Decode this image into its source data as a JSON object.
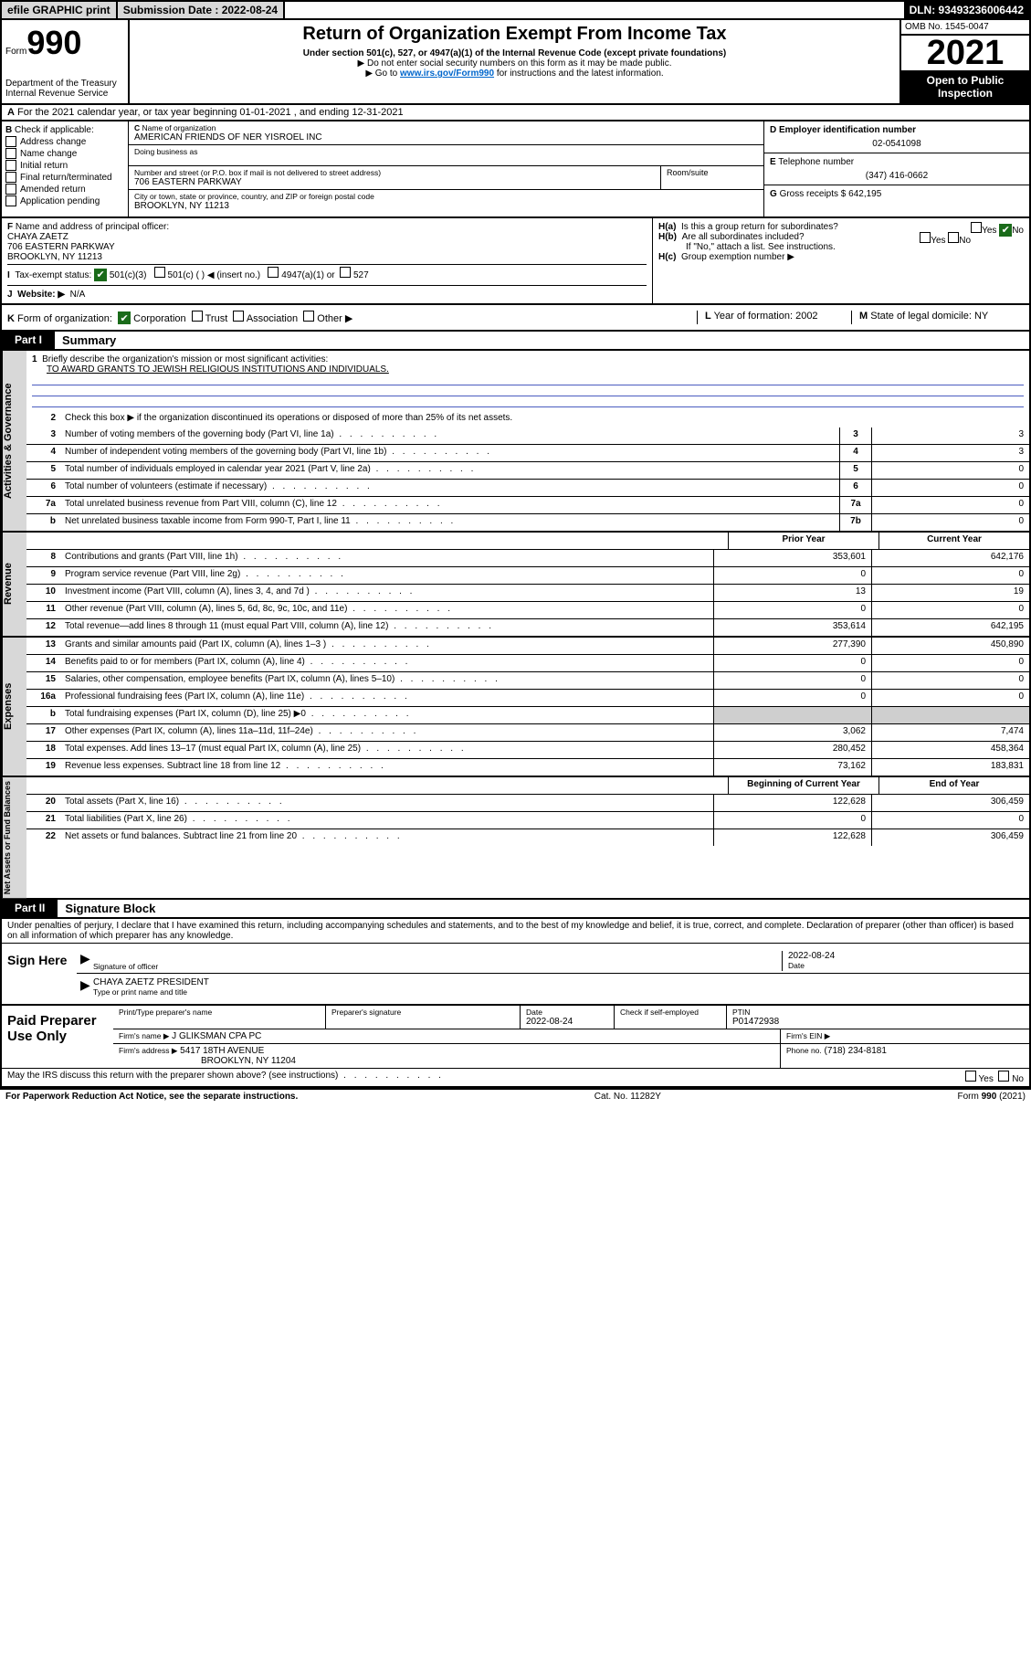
{
  "top": {
    "efile": "efile GRAPHIC print",
    "sub_label": "Submission Date : 2022-08-24",
    "dln": "DLN: 93493236006442"
  },
  "hdr": {
    "form_word": "Form",
    "form_num": "990",
    "title": "Return of Organization Exempt From Income Tax",
    "sub1": "Under section 501(c), 527, or 4947(a)(1) of the Internal Revenue Code (except private foundations)",
    "sub2": "Do not enter social security numbers on this form as it may be made public.",
    "sub3_pre": "Go to ",
    "sub3_link": "www.irs.gov/Form990",
    "sub3_post": " for instructions and the latest information.",
    "dept": "Department of the Treasury",
    "irs": "Internal Revenue Service",
    "omb": "OMB No. 1545-0047",
    "year": "2021",
    "open": "Open to Public Inspection"
  },
  "A": {
    "text": "For the 2021 calendar year, or tax year beginning 01-01-2021   , and ending 12-31-2021"
  },
  "B": {
    "label": "Check if applicable:",
    "items": [
      "Address change",
      "Name change",
      "Initial return",
      "Final return/terminated",
      "Amended return",
      "Application pending"
    ]
  },
  "C": {
    "name_lbl": "Name of organization",
    "name": "AMERICAN FRIENDS OF NER YISROEL INC",
    "dba_lbl": "Doing business as",
    "street_lbl": "Number and street (or P.O. box if mail is not delivered to street address)",
    "room_lbl": "Room/suite",
    "street": "706 EASTERN PARKWAY",
    "city_lbl": "City or town, state or province, country, and ZIP or foreign postal code",
    "city": "BROOKLYN, NY  11213"
  },
  "D": {
    "lbl": "Employer identification number",
    "val": "02-0541098"
  },
  "E": {
    "lbl": "Telephone number",
    "val": "(347) 416-0662"
  },
  "G": {
    "lbl": "Gross receipts $",
    "val": "642,195"
  },
  "F": {
    "lbl": "Name and address of principal officer:",
    "name": "CHAYA ZAETZ",
    "addr1": "706 EASTERN PARKWAY",
    "addr2": "BROOKLYN, NY  11213"
  },
  "H": {
    "a": "Is this a group return for subordinates?",
    "b": "Are all subordinates included?",
    "b_note": "If \"No,\" attach a list. See instructions.",
    "c": "Group exemption number ▶",
    "yes": "Yes",
    "no": "No"
  },
  "I": {
    "lbl": "Tax-exempt status:",
    "c3": "501(c)(3)",
    "c": "501(c) (   ) ◀ (insert no.)",
    "a1": "4947(a)(1) or",
    "s527": "527"
  },
  "J": {
    "lbl": "Website: ▶",
    "val": "N/A"
  },
  "K": {
    "lbl": "Form of organization:",
    "corp": "Corporation",
    "trust": "Trust",
    "assoc": "Association",
    "other": "Other ▶"
  },
  "L": {
    "lbl": "Year of formation:",
    "val": "2002"
  },
  "M": {
    "lbl": "State of legal domicile:",
    "val": "NY"
  },
  "part1": {
    "hdr": "Part I",
    "title": "Summary",
    "l1_lbl": "Briefly describe the organization's mission or most significant activities:",
    "l1_val": "TO AWARD GRANTS TO JEWISH RELIGIOUS INSTITUTIONS AND INDIVIDUALS.",
    "l2": "Check this box ▶      if the organization discontinued its operations or disposed of more than 25% of its net assets."
  },
  "side": {
    "gov": "Activities & Governance",
    "rev": "Revenue",
    "exp": "Expenses",
    "net": "Net Assets or Fund Balances"
  },
  "cols": {
    "prior": "Prior Year",
    "curr": "Current Year",
    "beg": "Beginning of Current Year",
    "end": "End of Year"
  },
  "gov": [
    {
      "n": "3",
      "d": "Number of voting members of the governing body (Part VI, line 1a)",
      "k": "3",
      "v": "3"
    },
    {
      "n": "4",
      "d": "Number of independent voting members of the governing body (Part VI, line 1b)",
      "k": "4",
      "v": "3"
    },
    {
      "n": "5",
      "d": "Total number of individuals employed in calendar year 2021 (Part V, line 2a)",
      "k": "5",
      "v": "0"
    },
    {
      "n": "6",
      "d": "Total number of volunteers (estimate if necessary)",
      "k": "6",
      "v": "0"
    },
    {
      "n": "7a",
      "d": "Total unrelated business revenue from Part VIII, column (C), line 12",
      "k": "7a",
      "v": "0"
    },
    {
      "n": "b",
      "d": "Net unrelated business taxable income from Form 990-T, Part I, line 11",
      "k": "7b",
      "v": "0"
    }
  ],
  "rev": [
    {
      "n": "8",
      "d": "Contributions and grants (Part VIII, line 1h)",
      "p": "353,601",
      "c": "642,176"
    },
    {
      "n": "9",
      "d": "Program service revenue (Part VIII, line 2g)",
      "p": "0",
      "c": "0"
    },
    {
      "n": "10",
      "d": "Investment income (Part VIII, column (A), lines 3, 4, and 7d )",
      "p": "13",
      "c": "19"
    },
    {
      "n": "11",
      "d": "Other revenue (Part VIII, column (A), lines 5, 6d, 8c, 9c, 10c, and 11e)",
      "p": "0",
      "c": "0"
    },
    {
      "n": "12",
      "d": "Total revenue—add lines 8 through 11 (must equal Part VIII, column (A), line 12)",
      "p": "353,614",
      "c": "642,195"
    }
  ],
  "exp": [
    {
      "n": "13",
      "d": "Grants and similar amounts paid (Part IX, column (A), lines 1–3 )",
      "p": "277,390",
      "c": "450,890"
    },
    {
      "n": "14",
      "d": "Benefits paid to or for members (Part IX, column (A), line 4)",
      "p": "0",
      "c": "0"
    },
    {
      "n": "15",
      "d": "Salaries, other compensation, employee benefits (Part IX, column (A), lines 5–10)",
      "p": "0",
      "c": "0"
    },
    {
      "n": "16a",
      "d": "Professional fundraising fees (Part IX, column (A), line 11e)",
      "p": "0",
      "c": "0"
    },
    {
      "n": "b",
      "d": "Total fundraising expenses (Part IX, column (D), line 25) ▶0",
      "p": "",
      "c": "",
      "shade": true
    },
    {
      "n": "17",
      "d": "Other expenses (Part IX, column (A), lines 11a–11d, 11f–24e)",
      "p": "3,062",
      "c": "7,474"
    },
    {
      "n": "18",
      "d": "Total expenses. Add lines 13–17 (must equal Part IX, column (A), line 25)",
      "p": "280,452",
      "c": "458,364"
    },
    {
      "n": "19",
      "d": "Revenue less expenses. Subtract line 18 from line 12",
      "p": "73,162",
      "c": "183,831"
    }
  ],
  "net": [
    {
      "n": "20",
      "d": "Total assets (Part X, line 16)",
      "p": "122,628",
      "c": "306,459"
    },
    {
      "n": "21",
      "d": "Total liabilities (Part X, line 26)",
      "p": "0",
      "c": "0"
    },
    {
      "n": "22",
      "d": "Net assets or fund balances. Subtract line 21 from line 20",
      "p": "122,628",
      "c": "306,459"
    }
  ],
  "part2": {
    "hdr": "Part II",
    "title": "Signature Block",
    "pen": "Under penalties of perjury, I declare that I have examined this return, including accompanying schedules and statements, and to the best of my knowledge and belief, it is true, correct, and complete. Declaration of preparer (other than officer) is based on all information of which preparer has any knowledge."
  },
  "sign": {
    "here": "Sign Here",
    "sig_lbl": "Signature of officer",
    "date_lbl": "Date",
    "date_val": "2022-08-24",
    "name": "CHAYA ZAETZ  PRESIDENT",
    "name_lbl": "Type or print name and title"
  },
  "prep": {
    "title": "Paid Preparer Use Only",
    "pt_lbl": "Print/Type preparer's name",
    "sig_lbl": "Preparer's signature",
    "date_lbl": "Date",
    "date_val": "2022-08-24",
    "chk_lbl": "Check       if self-employed",
    "ptin_lbl": "PTIN",
    "ptin": "P01472938",
    "firm_name_lbl": "Firm's name   ▶",
    "firm_name": "J GLIKSMAN CPA PC",
    "firm_ein_lbl": "Firm's EIN ▶",
    "firm_addr_lbl": "Firm's address ▶",
    "firm_addr1": "5417 18TH AVENUE",
    "firm_addr2": "BROOKLYN, NY  11204",
    "phone_lbl": "Phone no.",
    "phone": "(718) 234-8181",
    "discuss": "May the IRS discuss this return with the preparer shown above? (see instructions)"
  },
  "foot": {
    "l": "For Paperwork Reduction Act Notice, see the separate instructions.",
    "c": "Cat. No. 11282Y",
    "r": "Form 990 (2021)"
  }
}
